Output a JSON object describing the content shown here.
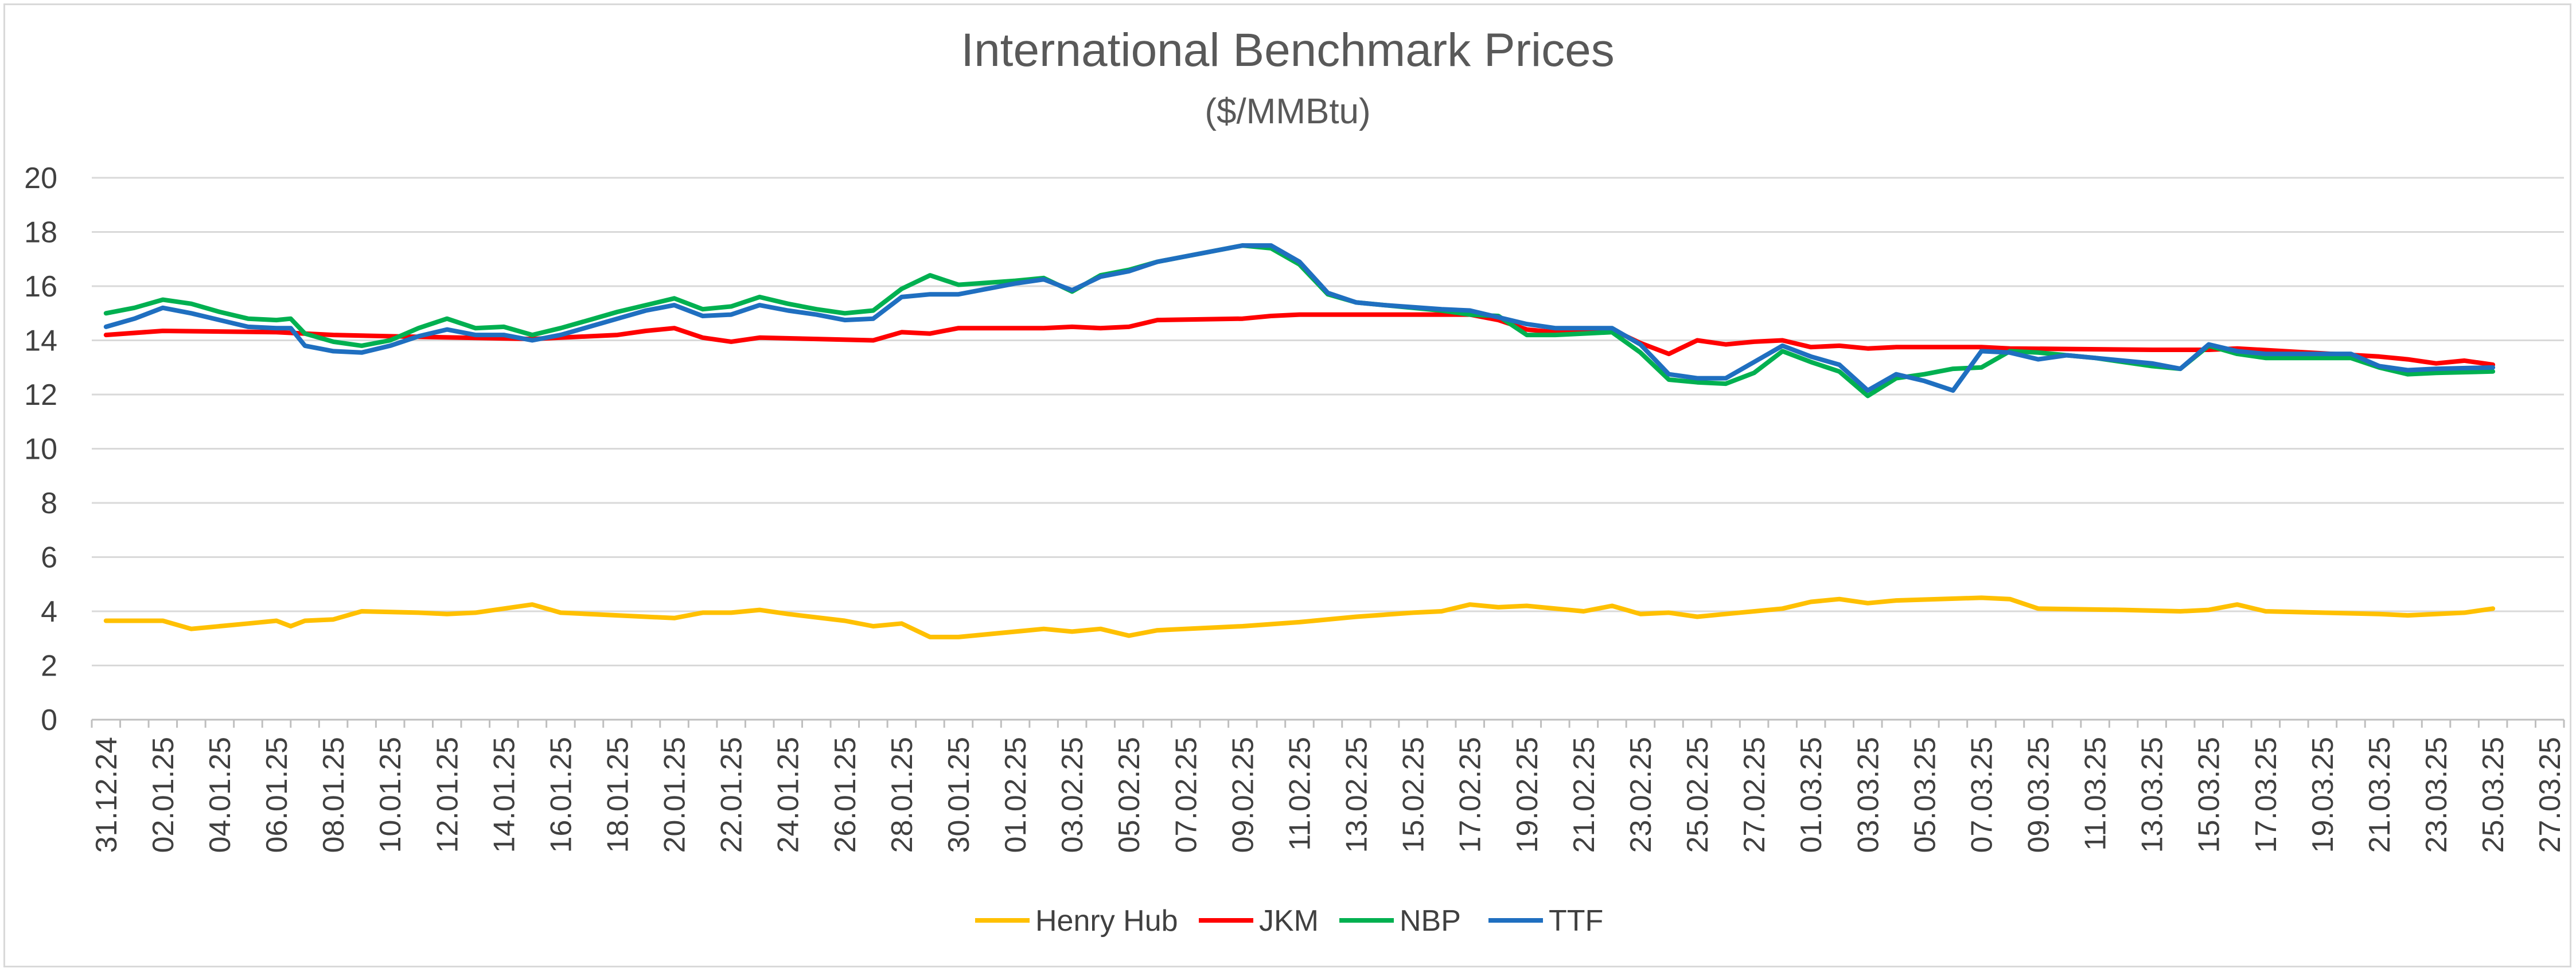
{
  "chart_data": {
    "type": "line",
    "title": "International Benchmark Prices",
    "subtitle": "($/MMBtu)",
    "xlabel": "",
    "ylabel": "",
    "ylim": [
      0,
      20
    ],
    "yticks": [
      0,
      2,
      4,
      6,
      8,
      10,
      12,
      14,
      16,
      18,
      20
    ],
    "grid": true,
    "legend_position": "bottom",
    "start_date": "2024-12-31",
    "x_tick_labels": [
      "31.12.24",
      "02.01.25",
      "04.01.25",
      "06.01.25",
      "08.01.25",
      "10.01.25",
      "12.01.25",
      "14.01.25",
      "16.01.25",
      "18.01.25",
      "20.01.25",
      "22.01.25",
      "24.01.25",
      "26.01.25",
      "28.01.25",
      "30.01.25",
      "01.02.25",
      "03.02.25",
      "05.02.25",
      "07.02.25",
      "09.02.25",
      "11.02.25",
      "13.02.25",
      "15.02.25",
      "17.02.25",
      "19.02.25",
      "21.02.25",
      "23.02.25",
      "25.02.25",
      "27.02.25",
      "01.03.25",
      "03.03.25",
      "05.03.25",
      "07.03.25",
      "09.03.25",
      "11.03.25",
      "13.03.25",
      "15.03.25",
      "17.03.25",
      "19.03.25",
      "21.03.25",
      "23.03.25",
      "25.03.25",
      "27.03.25"
    ],
    "series": [
      {
        "name": "Henry Hub",
        "color": "#ffc000",
        "points": [
          [
            0,
            3.65
          ],
          [
            2,
            3.65
          ],
          [
            3,
            3.35
          ],
          [
            5,
            3.55
          ],
          [
            6,
            3.65
          ],
          [
            6.5,
            3.45
          ],
          [
            7,
            3.65
          ],
          [
            8,
            3.7
          ],
          [
            9,
            4.0
          ],
          [
            11,
            3.95
          ],
          [
            12,
            3.9
          ],
          [
            13,
            3.95
          ],
          [
            14,
            4.1
          ],
          [
            15,
            4.25
          ],
          [
            16,
            3.95
          ],
          [
            19,
            3.8
          ],
          [
            20,
            3.75
          ],
          [
            21,
            3.95
          ],
          [
            22,
            3.95
          ],
          [
            23,
            4.05
          ],
          [
            24,
            3.9
          ],
          [
            26,
            3.65
          ],
          [
            27,
            3.45
          ],
          [
            28,
            3.55
          ],
          [
            29,
            3.05
          ],
          [
            30,
            3.05
          ],
          [
            33,
            3.35
          ],
          [
            34,
            3.25
          ],
          [
            35,
            3.35
          ],
          [
            36,
            3.1
          ],
          [
            37,
            3.3
          ],
          [
            40,
            3.45
          ],
          [
            42,
            3.6
          ],
          [
            44,
            3.8
          ],
          [
            46,
            3.95
          ],
          [
            47,
            4.0
          ],
          [
            48,
            4.25
          ],
          [
            49,
            4.15
          ],
          [
            50,
            4.2
          ],
          [
            52,
            4.0
          ],
          [
            53,
            4.2
          ],
          [
            54,
            3.9
          ],
          [
            55,
            3.95
          ],
          [
            56,
            3.8
          ],
          [
            57,
            3.9
          ],
          [
            59,
            4.1
          ],
          [
            60,
            4.35
          ],
          [
            61,
            4.45
          ],
          [
            62,
            4.3
          ],
          [
            63,
            4.4
          ],
          [
            66,
            4.5
          ],
          [
            67,
            4.45
          ],
          [
            68,
            4.1
          ],
          [
            71,
            4.05
          ],
          [
            73,
            4.0
          ],
          [
            74,
            4.05
          ],
          [
            75,
            4.25
          ],
          [
            76,
            4.0
          ],
          [
            78,
            3.95
          ],
          [
            80,
            3.9
          ],
          [
            81,
            3.85
          ],
          [
            82,
            3.9
          ],
          [
            83,
            3.95
          ],
          [
            84,
            4.1
          ]
        ]
      },
      {
        "name": "JKM",
        "color": "#ff0000",
        "points": [
          [
            0,
            14.2
          ],
          [
            2,
            14.35
          ],
          [
            6,
            14.3
          ],
          [
            8,
            14.2
          ],
          [
            10,
            14.15
          ],
          [
            15,
            14.05
          ],
          [
            18,
            14.2
          ],
          [
            19,
            14.35
          ],
          [
            20,
            14.45
          ],
          [
            21,
            14.1
          ],
          [
            22,
            13.95
          ],
          [
            23,
            14.1
          ],
          [
            27,
            14.0
          ],
          [
            28,
            14.3
          ],
          [
            29,
            14.25
          ],
          [
            30,
            14.45
          ],
          [
            33,
            14.45
          ],
          [
            34,
            14.5
          ],
          [
            35,
            14.45
          ],
          [
            36,
            14.5
          ],
          [
            37,
            14.75
          ],
          [
            40,
            14.8
          ],
          [
            41,
            14.9
          ],
          [
            42,
            14.95
          ],
          [
            47,
            14.95
          ],
          [
            48,
            14.95
          ],
          [
            49,
            14.75
          ],
          [
            50,
            14.4
          ],
          [
            51,
            14.3
          ],
          [
            52,
            14.35
          ],
          [
            53,
            14.4
          ],
          [
            54,
            13.9
          ],
          [
            55,
            13.5
          ],
          [
            56,
            14.0
          ],
          [
            57,
            13.85
          ],
          [
            58,
            13.95
          ],
          [
            59,
            14.0
          ],
          [
            60,
            13.75
          ],
          [
            61,
            13.8
          ],
          [
            62,
            13.7
          ],
          [
            63,
            13.75
          ],
          [
            66,
            13.75
          ],
          [
            67,
            13.7
          ],
          [
            72,
            13.65
          ],
          [
            74,
            13.65
          ],
          [
            75,
            13.7
          ],
          [
            80,
            13.4
          ],
          [
            81,
            13.3
          ],
          [
            82,
            13.15
          ],
          [
            83,
            13.25
          ],
          [
            84,
            13.1
          ]
        ]
      },
      {
        "name": "NBP",
        "color": "#00b050",
        "points": [
          [
            0,
            15.0
          ],
          [
            1,
            15.2
          ],
          [
            2,
            15.5
          ],
          [
            3,
            15.35
          ],
          [
            4,
            15.05
          ],
          [
            5,
            14.8
          ],
          [
            6,
            14.75
          ],
          [
            6.5,
            14.8
          ],
          [
            7,
            14.25
          ],
          [
            8,
            13.95
          ],
          [
            9,
            13.8
          ],
          [
            10,
            14.0
          ],
          [
            11,
            14.45
          ],
          [
            12,
            14.8
          ],
          [
            13,
            14.45
          ],
          [
            14,
            14.5
          ],
          [
            15,
            14.2
          ],
          [
            16,
            14.45
          ],
          [
            17,
            14.75
          ],
          [
            18,
            15.05
          ],
          [
            19,
            15.3
          ],
          [
            20,
            15.55
          ],
          [
            21,
            15.15
          ],
          [
            22,
            15.25
          ],
          [
            23,
            15.6
          ],
          [
            24,
            15.35
          ],
          [
            25,
            15.15
          ],
          [
            26,
            15.0
          ],
          [
            27,
            15.1
          ],
          [
            28,
            15.9
          ],
          [
            29,
            16.4
          ],
          [
            30,
            16.05
          ],
          [
            32,
            16.2
          ],
          [
            33,
            16.3
          ],
          [
            34,
            15.8
          ],
          [
            35,
            16.4
          ],
          [
            36,
            16.6
          ],
          [
            37,
            16.9
          ],
          [
            38,
            17.1
          ],
          [
            40,
            17.5
          ],
          [
            41,
            17.4
          ],
          [
            42,
            16.8
          ],
          [
            43,
            15.7
          ],
          [
            44,
            15.4
          ],
          [
            45,
            15.3
          ],
          [
            47,
            15.1
          ],
          [
            48,
            14.95
          ],
          [
            49,
            14.9
          ],
          [
            50,
            14.2
          ],
          [
            51,
            14.2
          ],
          [
            53,
            14.3
          ],
          [
            54,
            13.55
          ],
          [
            55,
            12.55
          ],
          [
            56,
            12.45
          ],
          [
            57,
            12.4
          ],
          [
            58,
            12.8
          ],
          [
            59,
            13.6
          ],
          [
            60,
            13.2
          ],
          [
            61,
            12.85
          ],
          [
            62,
            11.95
          ],
          [
            63,
            12.6
          ],
          [
            64,
            12.75
          ],
          [
            65,
            12.95
          ],
          [
            66,
            13.0
          ],
          [
            67,
            13.6
          ],
          [
            68,
            13.55
          ],
          [
            69,
            13.45
          ],
          [
            70,
            13.35
          ],
          [
            72,
            13.05
          ],
          [
            73,
            12.95
          ],
          [
            74,
            13.8
          ],
          [
            75,
            13.5
          ],
          [
            76,
            13.35
          ],
          [
            79,
            13.35
          ],
          [
            80,
            13.0
          ],
          [
            81,
            12.75
          ],
          [
            82,
            12.8
          ],
          [
            84,
            12.85
          ]
        ]
      },
      {
        "name": "TTF",
        "color": "#1f6fc0",
        "points": [
          [
            0,
            14.5
          ],
          [
            1,
            14.8
          ],
          [
            2,
            15.2
          ],
          [
            3,
            15.0
          ],
          [
            4,
            14.75
          ],
          [
            5,
            14.5
          ],
          [
            6,
            14.45
          ],
          [
            6.5,
            14.45
          ],
          [
            7,
            13.8
          ],
          [
            8,
            13.6
          ],
          [
            9,
            13.55
          ],
          [
            10,
            13.8
          ],
          [
            11,
            14.15
          ],
          [
            12,
            14.4
          ],
          [
            13,
            14.2
          ],
          [
            14,
            14.2
          ],
          [
            15,
            14.0
          ],
          [
            16,
            14.2
          ],
          [
            17,
            14.5
          ],
          [
            18,
            14.8
          ],
          [
            19,
            15.1
          ],
          [
            20,
            15.3
          ],
          [
            21,
            14.9
          ],
          [
            22,
            14.95
          ],
          [
            23,
            15.3
          ],
          [
            24,
            15.1
          ],
          [
            25,
            14.95
          ],
          [
            26,
            14.75
          ],
          [
            27,
            14.8
          ],
          [
            28,
            15.6
          ],
          [
            29,
            15.7
          ],
          [
            30,
            15.7
          ],
          [
            32,
            16.1
          ],
          [
            33,
            16.25
          ],
          [
            34,
            15.85
          ],
          [
            35,
            16.35
          ],
          [
            36,
            16.55
          ],
          [
            37,
            16.9
          ],
          [
            38,
            17.1
          ],
          [
            40,
            17.5
          ],
          [
            41,
            17.5
          ],
          [
            42,
            16.9
          ],
          [
            43,
            15.75
          ],
          [
            44,
            15.4
          ],
          [
            45,
            15.3
          ],
          [
            47,
            15.15
          ],
          [
            48,
            15.1
          ],
          [
            49,
            14.85
          ],
          [
            50,
            14.6
          ],
          [
            51,
            14.45
          ],
          [
            53,
            14.45
          ],
          [
            54,
            13.85
          ],
          [
            55,
            12.75
          ],
          [
            56,
            12.6
          ],
          [
            57,
            12.6
          ],
          [
            58,
            13.2
          ],
          [
            59,
            13.8
          ],
          [
            60,
            13.4
          ],
          [
            61,
            13.1
          ],
          [
            62,
            12.15
          ],
          [
            63,
            12.75
          ],
          [
            64,
            12.5
          ],
          [
            65,
            12.15
          ],
          [
            66,
            13.6
          ],
          [
            67,
            13.55
          ],
          [
            68,
            13.3
          ],
          [
            69,
            13.45
          ],
          [
            70,
            13.35
          ],
          [
            72,
            13.15
          ],
          [
            73,
            12.95
          ],
          [
            74,
            13.85
          ],
          [
            75,
            13.6
          ],
          [
            76,
            13.5
          ],
          [
            79,
            13.5
          ],
          [
            80,
            13.05
          ],
          [
            81,
            12.9
          ],
          [
            82,
            12.95
          ],
          [
            84,
            13.0
          ]
        ]
      }
    ]
  }
}
